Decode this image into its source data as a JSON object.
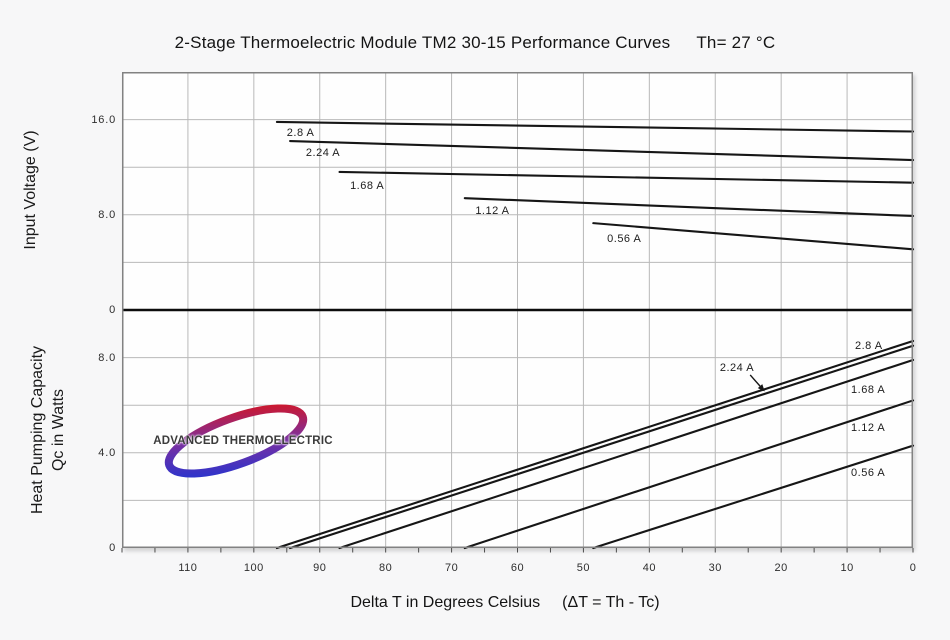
{
  "logo": {
    "text": "ADVANCED THERMOELECTRIC",
    "blue": "#1a35d6",
    "purple": "#7b2fa0",
    "red": "#e01212"
  },
  "colors": {
    "background": "#f7f7f8",
    "plot_background": "#fefefe",
    "gridline": "#b9b9b9",
    "border": "#828282",
    "divider": "#0d0d0d",
    "curve": "#161616",
    "tick": "#4a4a4a",
    "text": "#1a1a1a"
  },
  "chart_data": {
    "type": "line",
    "title": "2-Stage Thermoelectric Module TM2 30-15 Performance Curves",
    "condition": "Th= 27 °C",
    "x_axis": {
      "label": "Delta T in Degrees Celsius",
      "label_suffix": "(ΔT = Th - Tc)",
      "min": 0,
      "max": 120,
      "reversed": true,
      "major_grid_step": 10,
      "minor_tick_step": 5,
      "tick_labels": [
        {
          "dt": 110,
          "label": "110"
        },
        {
          "dt": 100,
          "label": "100"
        },
        {
          "dt": 90,
          "label": "90"
        },
        {
          "dt": 80,
          "label": "80"
        },
        {
          "dt": 70,
          "label": "70"
        },
        {
          "dt": 60,
          "label": "60"
        },
        {
          "dt": 50,
          "label": "50"
        },
        {
          "dt": 40,
          "label": "40"
        },
        {
          "dt": 30,
          "label": "30"
        },
        {
          "dt": 20,
          "label": "20"
        },
        {
          "dt": 10,
          "label": "10"
        },
        {
          "dt": 0,
          "label": "0"
        }
      ]
    },
    "panels": [
      {
        "id": "voltage",
        "axis_label": "Input Voltage (V)",
        "min": 0,
        "max": 20,
        "grid_step": 4,
        "ticks": [
          {
            "value": 16,
            "label": "16.0"
          },
          {
            "value": 8,
            "label": "8.0"
          },
          {
            "value": 0,
            "label": "0"
          }
        ]
      },
      {
        "id": "qc",
        "axis_label_line1": "Heat Pumping Capacity",
        "axis_label_line2": "Qc in Watts",
        "min": 0,
        "max": 10,
        "grid_step": 2,
        "ticks": [
          {
            "value": 8,
            "label": "8.0"
          },
          {
            "value": 4,
            "label": "4.0"
          },
          {
            "value": 0,
            "label": "0"
          }
        ]
      }
    ],
    "series": [
      {
        "label": "2.8 A",
        "current_A": 2.8,
        "dt_max_C": 96.5,
        "voltage_V": {
          "at_dt_max": 15.8,
          "at_dt_0": 15.0
        },
        "qc_W": {
          "at_dt_max": 0,
          "at_dt_0": 8.7
        }
      },
      {
        "label": "2.24 A",
        "current_A": 2.24,
        "dt_max_C": 94.5,
        "voltage_V": {
          "at_dt_max": 14.2,
          "at_dt_0": 12.6
        },
        "qc_W": {
          "at_dt_max": 0,
          "at_dt_0": 8.5
        }
      },
      {
        "label": "1.68 A",
        "current_A": 1.68,
        "dt_max_C": 87,
        "voltage_V": {
          "at_dt_max": 11.6,
          "at_dt_0": 10.7
        },
        "qc_W": {
          "at_dt_max": 0,
          "at_dt_0": 7.9
        }
      },
      {
        "label": "1.12 A",
        "current_A": 1.12,
        "dt_max_C": 68,
        "voltage_V": {
          "at_dt_max": 9.4,
          "at_dt_0": 7.9
        },
        "qc_W": {
          "at_dt_max": 0,
          "at_dt_0": 6.2
        }
      },
      {
        "label": "0.56 A",
        "current_A": 0.56,
        "dt_max_C": 48.5,
        "voltage_V": {
          "at_dt_max": 7.3,
          "at_dt_0": 5.1
        },
        "qc_W": {
          "at_dt_max": 0,
          "at_dt_0": 4.3
        }
      }
    ],
    "curve_labels": {
      "voltage": [
        {
          "text": "2.8 A",
          "dt": 95.0,
          "value": 15.38
        },
        {
          "text": "2.24 A",
          "dt": 92.1,
          "value": 13.7
        },
        {
          "text": "1.68 A",
          "dt": 85.4,
          "value": 10.92
        },
        {
          "text": "1.12 A",
          "dt": 66.4,
          "value": 8.82
        },
        {
          "text": "0.56 A",
          "dt": 46.4,
          "value": 6.47
        }
      ],
      "qc": [
        {
          "text": "2.8 A",
          "dt": 8.8,
          "value": 8.74
        },
        {
          "text": "2.24 A",
          "dt": 29.3,
          "value": 7.82
        },
        {
          "text": "1.68 A",
          "dt": 9.4,
          "value": 6.89
        },
        {
          "text": "1.12 A",
          "dt": 9.4,
          "value": 5.29
        },
        {
          "text": "0.56 A",
          "dt": 9.4,
          "value": 3.4
        }
      ]
    },
    "annotation_arrow": {
      "panel": "qc",
      "from": {
        "dt": 24.7,
        "value": 7.27
      },
      "to": {
        "dt": 22.5,
        "value": 6.58
      }
    }
  }
}
